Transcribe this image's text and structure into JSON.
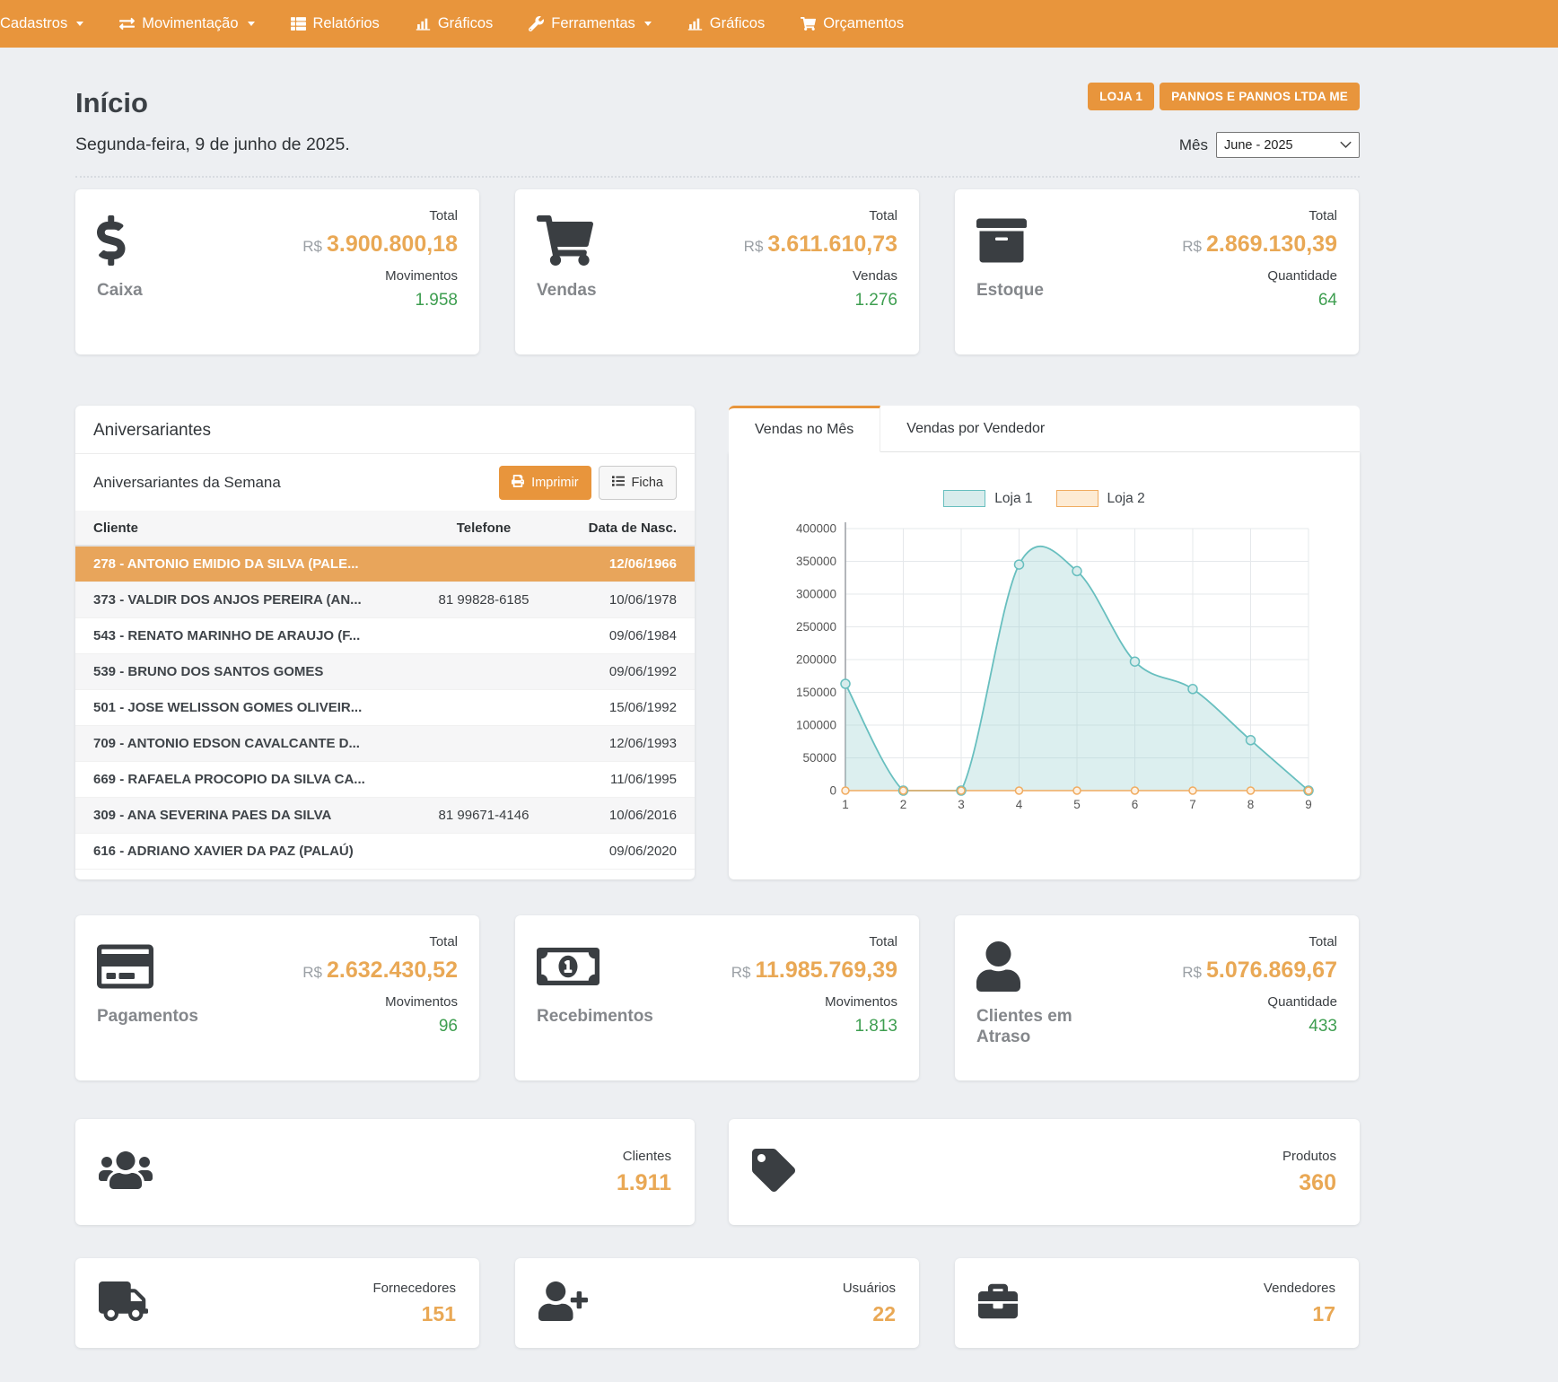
{
  "nav": {
    "items": [
      {
        "label": "Cadastros",
        "icon": "",
        "caret": true
      },
      {
        "label": "Movimentação",
        "icon": "exchange-icon",
        "caret": true
      },
      {
        "label": "Relatórios",
        "icon": "report-icon",
        "caret": false
      },
      {
        "label": "Gráficos",
        "icon": "bar-chart-icon",
        "caret": false
      },
      {
        "label": "Ferramentas",
        "icon": "wrench-icon",
        "caret": true
      },
      {
        "label": "Gráficos",
        "icon": "bar-chart-icon",
        "caret": false
      },
      {
        "label": "Orçamentos",
        "icon": "cart-icon",
        "caret": false
      }
    ]
  },
  "header": {
    "title": "Início",
    "store_button": "LOJA 1",
    "company_button": "PANNOS E PANNOS LTDA ME",
    "date": "Segunda-feira, 9 de junho de 2025.",
    "month_label": "Mês",
    "month_value": "June - 2025"
  },
  "summary_cards": [
    {
      "name": "Caixa",
      "icon": "dollar-icon",
      "total_label": "Total",
      "currency": "R$",
      "total_value": "3.900.800,18",
      "count_label": "Movimentos",
      "count_value": "1.958"
    },
    {
      "name": "Vendas",
      "icon": "cart-icon",
      "total_label": "Total",
      "currency": "R$",
      "total_value": "3.611.610,73",
      "count_label": "Vendas",
      "count_value": "1.276"
    },
    {
      "name": "Estoque",
      "icon": "box-icon",
      "total_label": "Total",
      "currency": "R$",
      "total_value": "2.869.130,39",
      "count_label": "Quantidade",
      "count_value": "64"
    }
  ],
  "birthdays": {
    "title": "Aniversariantes",
    "subtitle": "Aniversariantes da Semana",
    "print_button": "Imprimir",
    "ficha_button": "Ficha",
    "columns": [
      "Cliente",
      "Telefone",
      "Data de Nasc."
    ],
    "rows": [
      {
        "client": "278 - ANTONIO EMIDIO DA SILVA (PALE...",
        "phone": "",
        "birthdate": "12/06/1966",
        "highlighted": true
      },
      {
        "client": "373 - VALDIR DOS ANJOS PEREIRA (AN...",
        "phone": "81 99828-6185",
        "birthdate": "10/06/1978",
        "highlighted": false
      },
      {
        "client": "543 - RENATO MARINHO DE ARAUJO (F...",
        "phone": "",
        "birthdate": "09/06/1984",
        "highlighted": false
      },
      {
        "client": "539 - BRUNO DOS SANTOS GOMES",
        "phone": "",
        "birthdate": "09/06/1992",
        "highlighted": false
      },
      {
        "client": "501 - JOSE WELISSON GOMES OLIVEIR...",
        "phone": "",
        "birthdate": "15/06/1992",
        "highlighted": false
      },
      {
        "client": "709 - ANTONIO EDSON CAVALCANTE D...",
        "phone": "",
        "birthdate": "12/06/1993",
        "highlighted": false
      },
      {
        "client": "669 - RAFAELA PROCOPIO DA SILVA CA...",
        "phone": "",
        "birthdate": "11/06/1995",
        "highlighted": false
      },
      {
        "client": "309 - ANA SEVERINA PAES DA SILVA",
        "phone": "81 99671-4146",
        "birthdate": "10/06/2016",
        "highlighted": false
      },
      {
        "client": "616 - ADRIANO XAVIER DA PAZ (PALAÚ)",
        "phone": "",
        "birthdate": "09/06/2020",
        "highlighted": false
      }
    ]
  },
  "chart": {
    "tabs": [
      {
        "label": "Vendas no Mês",
        "active": true
      },
      {
        "label": "Vendas por Vendedor",
        "active": false
      }
    ]
  },
  "chart_data": {
    "type": "line",
    "title": "Vendas no Mês",
    "x": [
      1,
      2,
      3,
      4,
      5,
      6,
      7,
      8,
      9
    ],
    "xlabel": "",
    "ylabel": "",
    "ylim": [
      0,
      400000
    ],
    "ytick_step": 50000,
    "grid": true,
    "legend_position": "top",
    "series": [
      {
        "name": "Loja 1",
        "color": "#68BFBF",
        "fill": "#D8ECEC",
        "values": [
          163000,
          0,
          0,
          345000,
          335000,
          197000,
          155000,
          77000,
          0
        ]
      },
      {
        "name": "Loja 2",
        "color": "#F0AC61",
        "fill": "#FDEBD4",
        "values": [
          0,
          0,
          0,
          0,
          0,
          0,
          0,
          0,
          0
        ]
      }
    ]
  },
  "finance_cards": [
    {
      "name": "Pagamentos",
      "icon": "credit-card-icon",
      "total_label": "Total",
      "currency": "R$",
      "total_value": "2.632.430,52",
      "count_label": "Movimentos",
      "count_value": "96"
    },
    {
      "name": "Recebimentos",
      "icon": "money-bill-icon",
      "total_label": "Total",
      "currency": "R$",
      "total_value": "11.985.769,39",
      "count_label": "Movimentos",
      "count_value": "1.813"
    },
    {
      "name": "Clientes em Atraso",
      "icon": "person-icon",
      "total_label": "Total",
      "currency": "R$",
      "total_value": "5.076.869,67",
      "count_label": "Quantidade",
      "count_value": "433"
    }
  ],
  "wide_cards": [
    {
      "name": "Clientes",
      "icon": "users-icon",
      "value": "1.911"
    },
    {
      "name": "Produtos",
      "icon": "tag-icon",
      "value": "360"
    }
  ],
  "small_cards": [
    {
      "name": "Fornecedores",
      "icon": "truck-icon",
      "value": "151"
    },
    {
      "name": "Usuários",
      "icon": "user-plus-icon",
      "value": "22"
    },
    {
      "name": "Vendedores",
      "icon": "briefcase-icon",
      "value": "17"
    }
  ],
  "colors": {
    "accent": "#E8953C",
    "value_orange": "#E9A855",
    "positive_green": "#3E9E50",
    "series_teal": "#68BFBF",
    "series_orange": "#F0AC61",
    "highlight_row": "#E8A55B"
  }
}
